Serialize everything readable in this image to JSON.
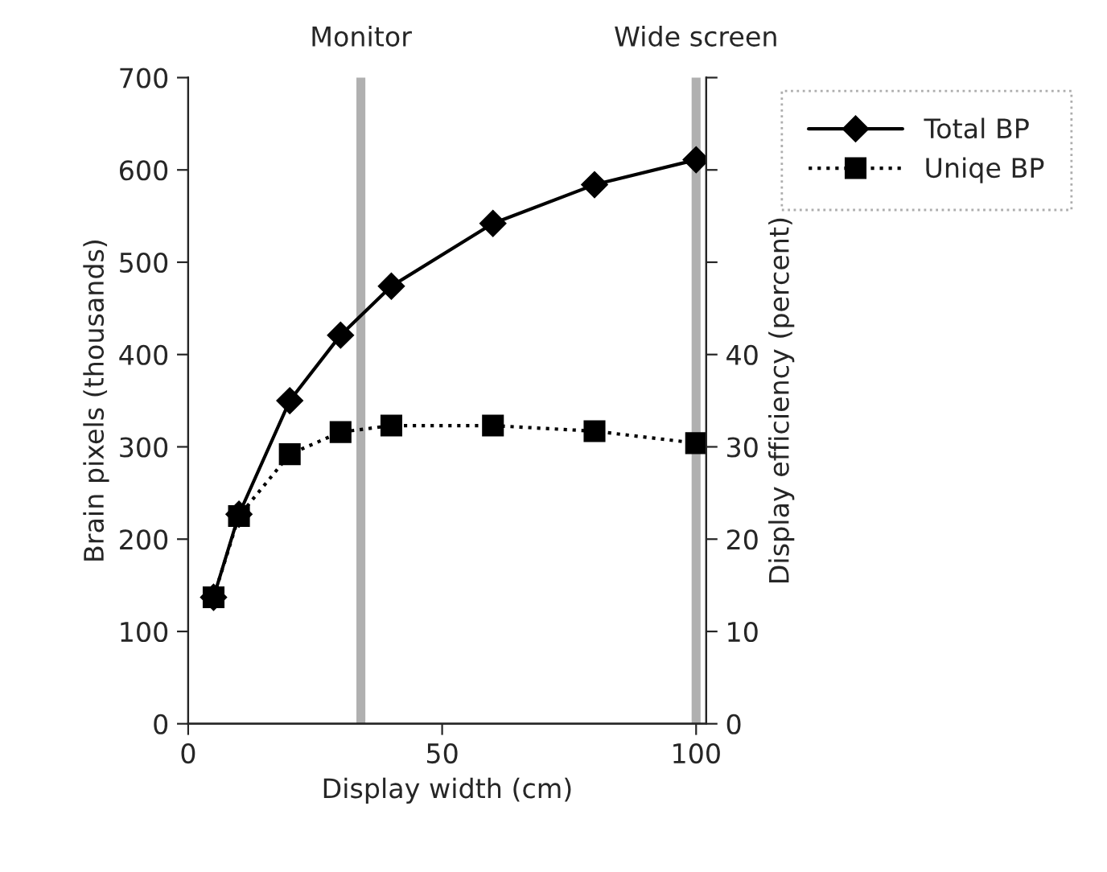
{
  "chart_data": {
    "type": "line",
    "xlabel": "Display width (cm)",
    "ylabel": "Brain pixels (thousands)",
    "y2label": "Display efficiency (percent)",
    "x": [
      5,
      10,
      20,
      30,
      40,
      60,
      80,
      100
    ],
    "series": [
      {
        "name": "Total BP",
        "color": "#000000",
        "values": [
          137,
          227,
          350,
          421,
          474,
          542,
          584,
          611
        ],
        "marker": "diamond",
        "line_style": "solid"
      },
      {
        "name": "Uniqe BP",
        "color": "#000000",
        "values": [
          137,
          225,
          292,
          316,
          323,
          323,
          317,
          304
        ],
        "marker": "square",
        "line_style": "dotted"
      }
    ],
    "xlim": [
      0,
      102
    ],
    "xticks": [
      0,
      50,
      100
    ],
    "ylim": [
      0,
      700
    ],
    "yticks": [
      0,
      100,
      200,
      300,
      400,
      500,
      600,
      700
    ],
    "y2lim": [
      0,
      70
    ],
    "y2ticks": [
      0,
      10,
      20,
      30,
      40,
      {
        "value": 50,
        "label": null
      },
      {
        "value": 60,
        "label": null
      },
      {
        "value": 70,
        "label": null
      }
    ],
    "ref_lines": [
      {
        "axis": "x",
        "value": 34,
        "label": "Monitor",
        "color": "#b0b0b0"
      },
      {
        "axis": "x",
        "value": 100,
        "label": "Wide screen",
        "color": "#b0b0b0"
      }
    ],
    "grid": false,
    "legend": "top right"
  }
}
